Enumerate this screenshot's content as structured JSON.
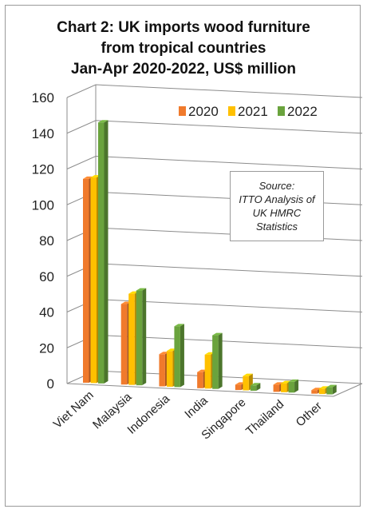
{
  "chart_data": {
    "type": "bar",
    "title_lines": [
      "Chart 2: UK imports wood furniture",
      "from tropical countries",
      "Jan-Apr 2020-2022, US$ million"
    ],
    "categories": [
      "Viet Nam",
      "Malaysia",
      "Indonesia",
      "India",
      "Singapore",
      "Thailand",
      "Other"
    ],
    "series": [
      {
        "name": "2020",
        "values": [
          114,
          45,
          18,
          9,
          3,
          4,
          2
        ],
        "color": "#f07a2c"
      },
      {
        "name": "2021",
        "values": [
          115,
          51,
          20,
          19,
          8,
          5,
          3
        ],
        "color": "#ffc000"
      },
      {
        "name": "2022",
        "values": [
          146,
          53,
          34,
          30,
          3,
          6,
          4
        ],
        "color": "#6aa33d"
      }
    ],
    "ylim": [
      0,
      160
    ],
    "yticks": [
      0,
      20,
      40,
      60,
      80,
      100,
      120,
      140,
      160
    ],
    "grid": true,
    "legend_position": "top-right",
    "annotation": [
      "Source:",
      "ITTO Analysis of",
      "UK HMRC",
      "Statistics"
    ]
  }
}
